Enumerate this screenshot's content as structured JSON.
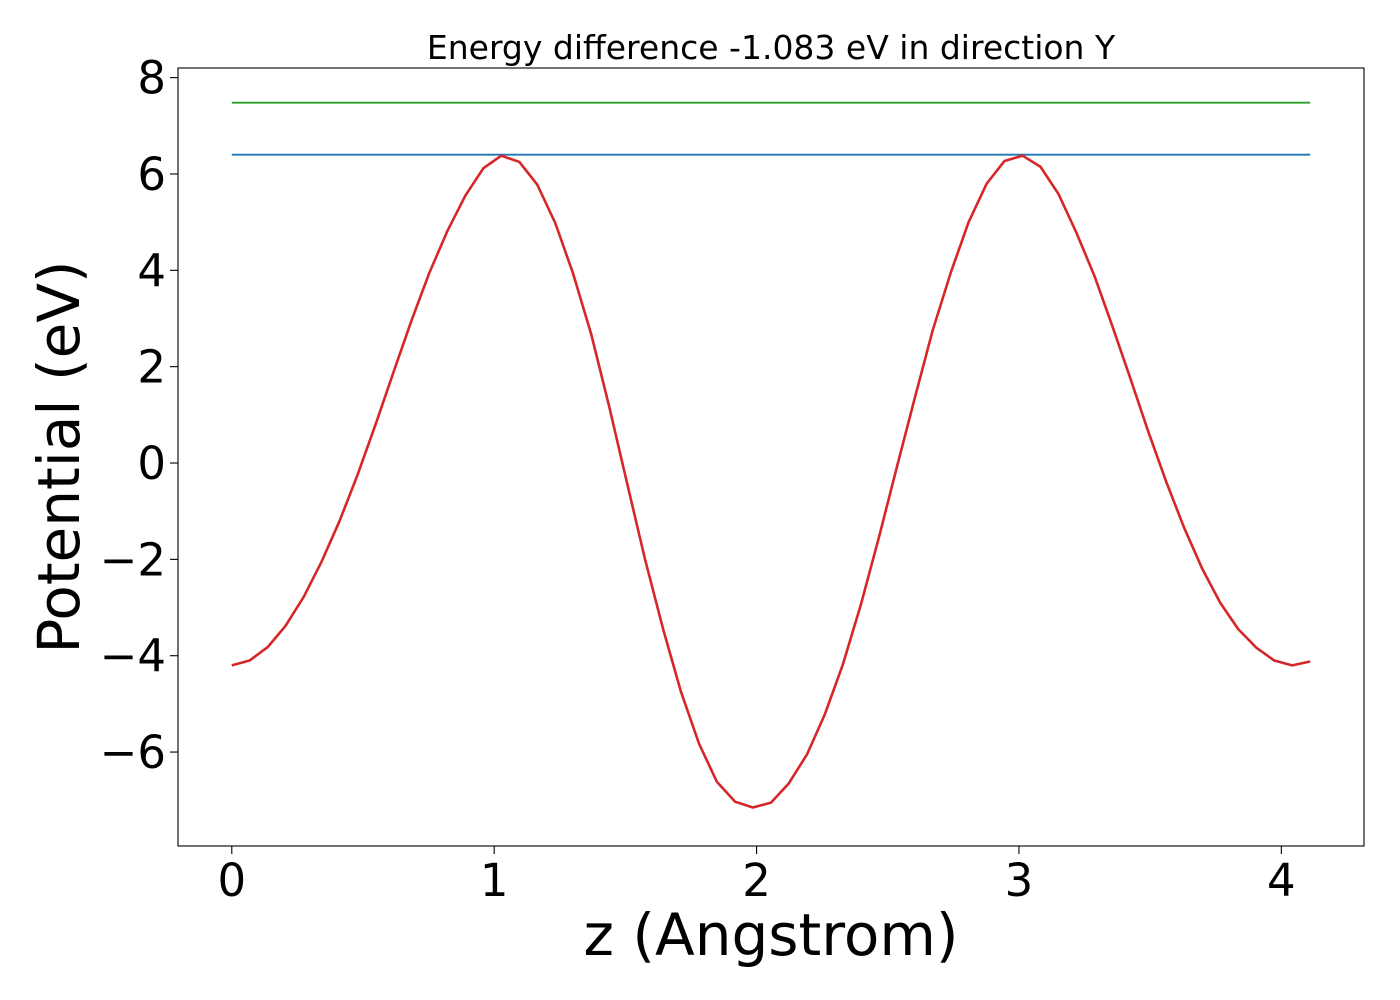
{
  "chart_data": {
    "type": "line",
    "title": "Energy difference -1.083 eV in direction Y",
    "xlabel": "z (Angstrom)",
    "ylabel": "Potential (eV)",
    "xlim": [
      -0.205,
      4.315
    ],
    "ylim": [
      -7.95,
      8.2
    ],
    "x_ticks": [
      0,
      1,
      2,
      3,
      4
    ],
    "x_tick_labels": [
      "0",
      "1",
      "2",
      "3",
      "4"
    ],
    "y_ticks": [
      -6,
      -4,
      -2,
      0,
      2,
      4,
      6,
      8
    ],
    "y_tick_labels": [
      "−6",
      "−4",
      "−2",
      "0",
      "2",
      "4",
      "6",
      "8"
    ],
    "grid": false,
    "legend": "none",
    "series": [
      {
        "color": "#2ca02c",
        "x": [
          0,
          4.11
        ],
        "y": [
          7.48,
          7.48
        ]
      },
      {
        "color": "#1f77b4",
        "x": [
          0,
          4.11
        ],
        "y": [
          6.4,
          6.4
        ]
      },
      {
        "color": "#d62728",
        "x": [
          0,
          0.068,
          0.137,
          0.205,
          0.274,
          0.342,
          0.411,
          0.479,
          0.548,
          0.616,
          0.685,
          0.753,
          0.822,
          0.89,
          0.959,
          1.027,
          1.096,
          1.164,
          1.233,
          1.301,
          1.37,
          1.438,
          1.507,
          1.575,
          1.644,
          1.712,
          1.781,
          1.849,
          1.918,
          1.986,
          2.055,
          2.123,
          2.192,
          2.26,
          2.329,
          2.397,
          2.466,
          2.534,
          2.603,
          2.671,
          2.74,
          2.808,
          2.877,
          2.945,
          3.014,
          3.082,
          3.151,
          3.219,
          3.288,
          3.356,
          3.425,
          3.493,
          3.562,
          3.63,
          3.699,
          3.767,
          3.836,
          3.904,
          3.973,
          4.041,
          4.11
        ],
        "y": [
          -4.2,
          -4.1,
          -3.82,
          -3.38,
          -2.78,
          -2.05,
          -1.2,
          -0.25,
          0.8,
          1.88,
          2.96,
          3.95,
          4.82,
          5.55,
          6.12,
          6.38,
          6.25,
          5.78,
          4.98,
          3.93,
          2.67,
          1.18,
          -0.43,
          -2.0,
          -3.45,
          -4.75,
          -5.83,
          -6.62,
          -7.03,
          -7.15,
          -7.05,
          -6.65,
          -6.05,
          -5.22,
          -4.18,
          -2.95,
          -1.55,
          -0.1,
          1.35,
          2.75,
          3.95,
          5.0,
          5.8,
          6.27,
          6.38,
          6.15,
          5.58,
          4.78,
          3.88,
          2.84,
          1.75,
          0.65,
          -0.4,
          -1.35,
          -2.2,
          -2.9,
          -3.45,
          -3.83,
          -4.1,
          -4.2,
          -4.12
        ]
      }
    ]
  }
}
